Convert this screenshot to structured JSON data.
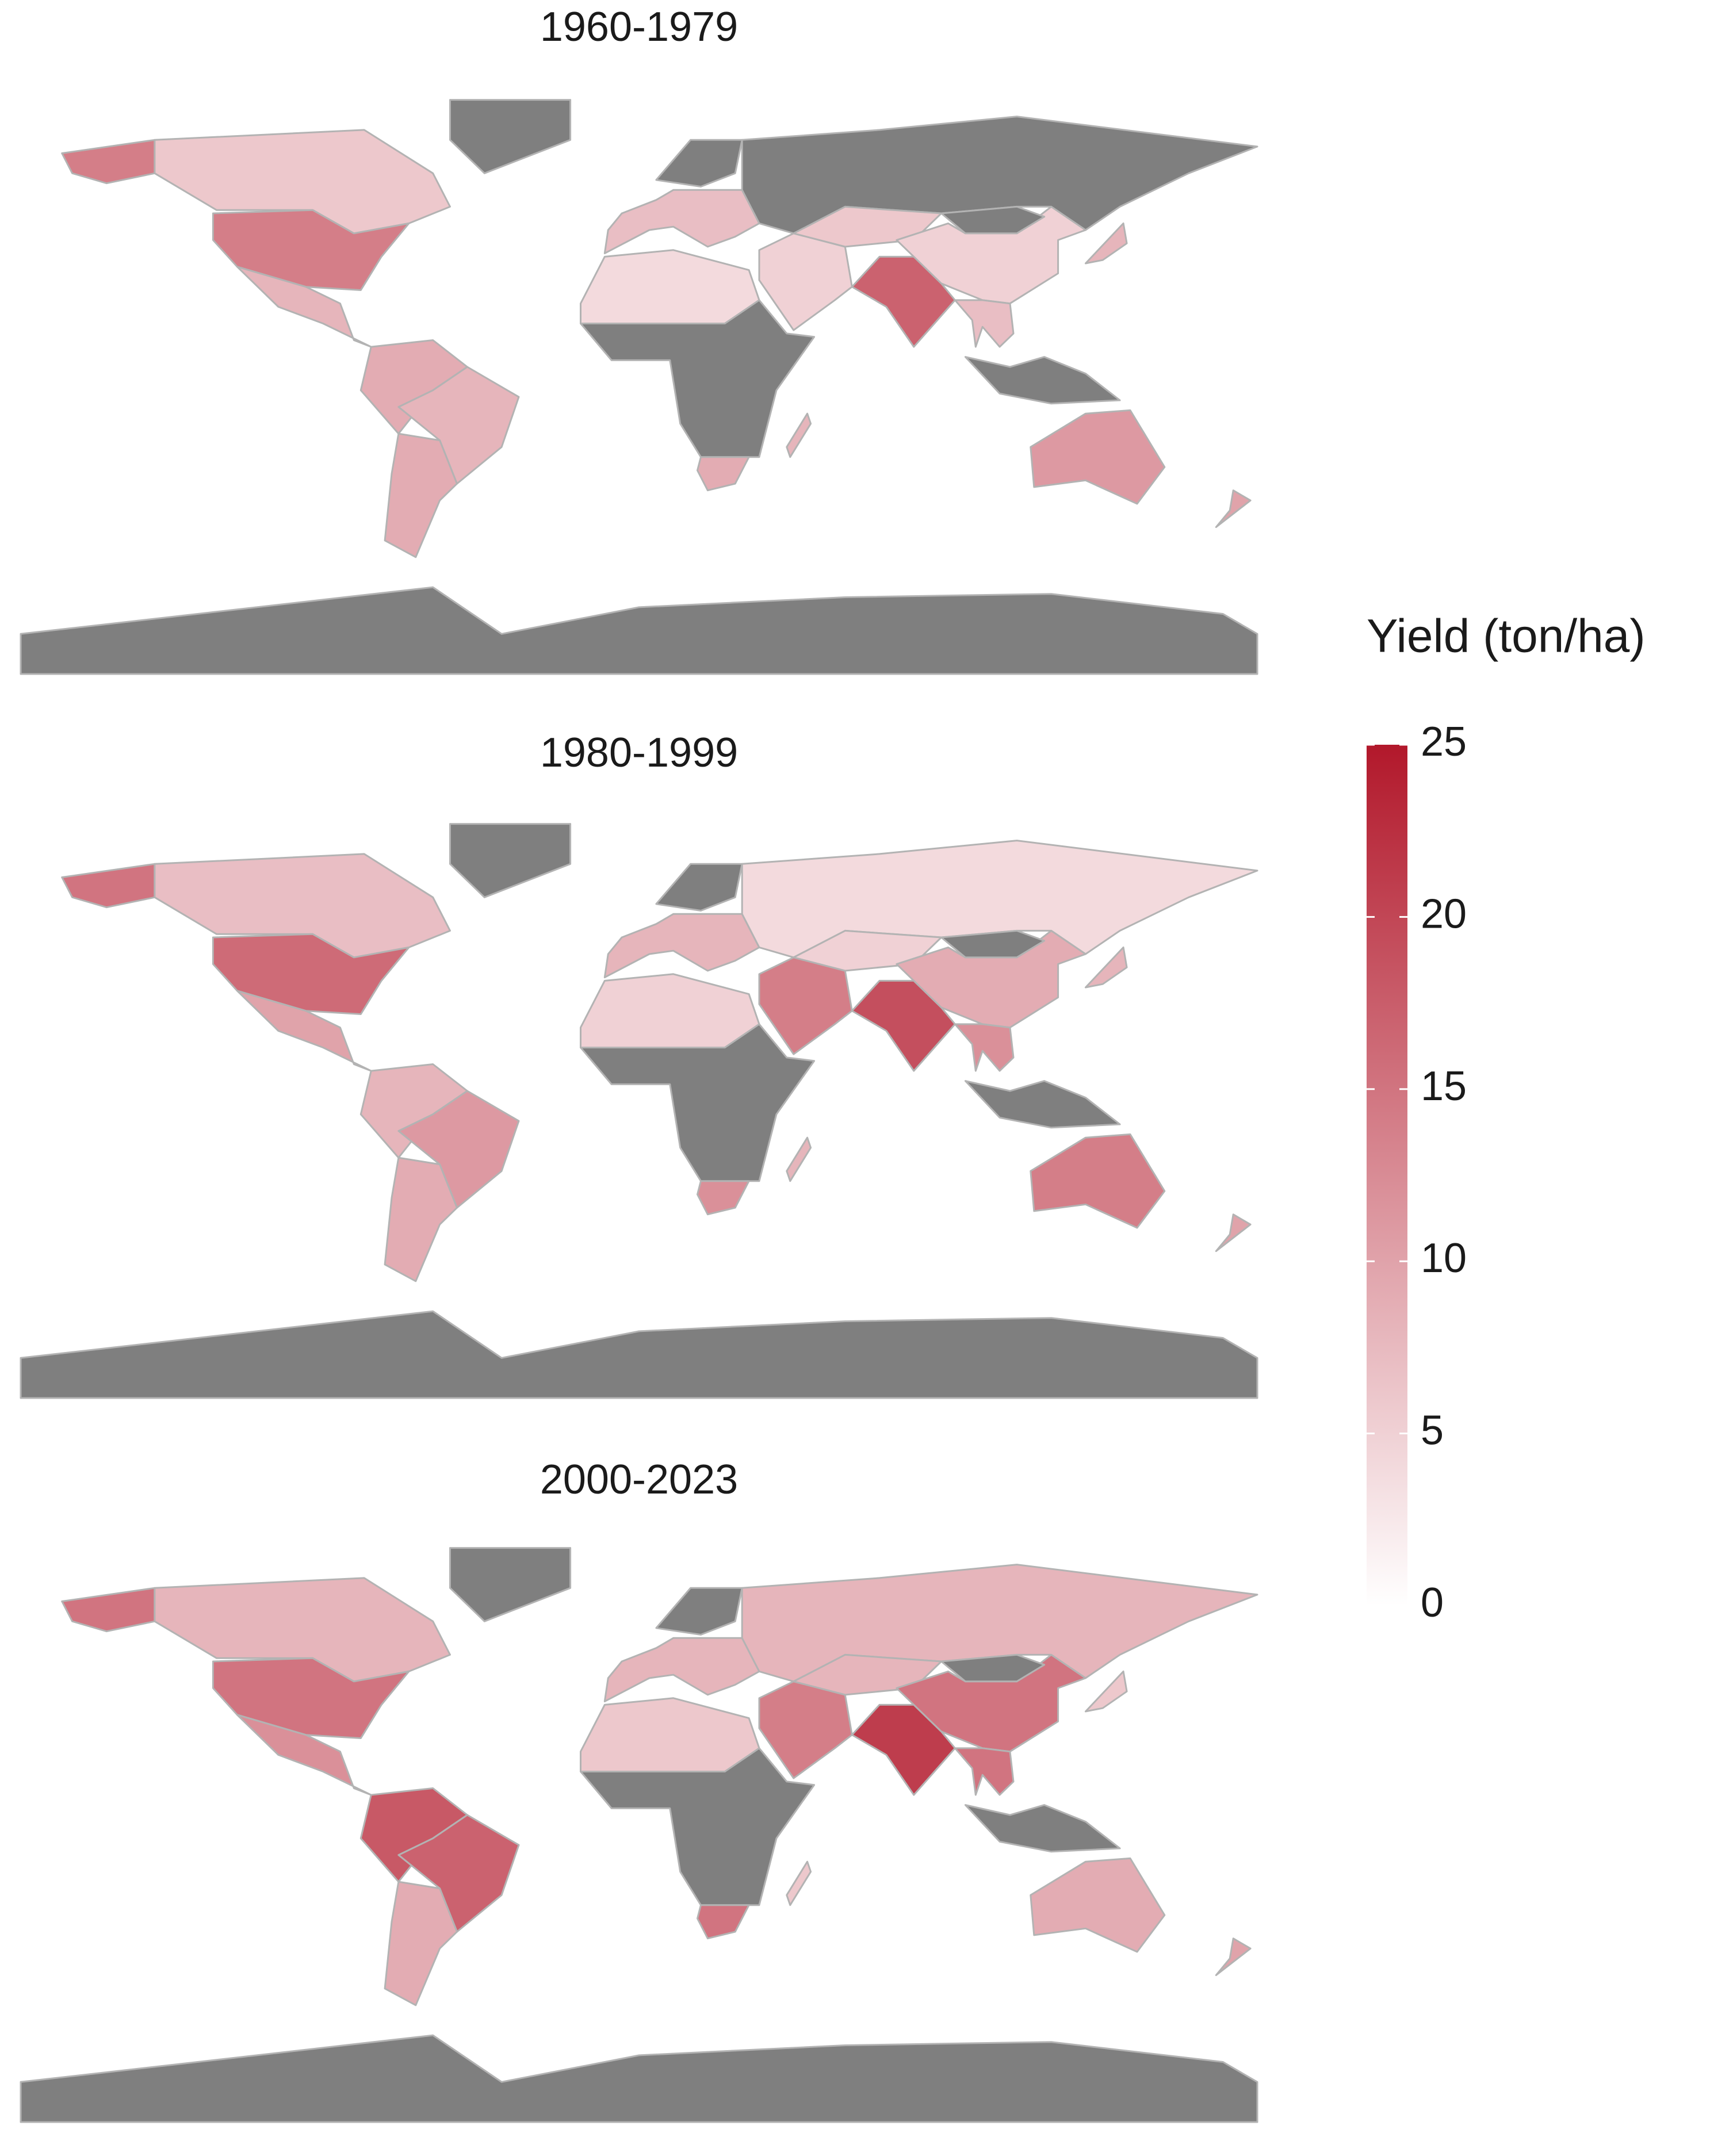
{
  "panels": [
    {
      "title": "1960-1979",
      "values": [
        14,
        6,
        null,
        14,
        8,
        9,
        8,
        9,
        7,
        null,
        null,
        4,
        null,
        9,
        5,
        6,
        17,
        5,
        null,
        7,
        null,
        8,
        11,
        10,
        null,
        8
      ]
    },
    {
      "title": "1980-1999",
      "values": [
        15,
        7,
        null,
        16,
        10,
        8,
        11,
        9,
        8,
        null,
        4,
        5,
        null,
        12,
        14,
        5,
        19,
        9,
        null,
        12,
        null,
        8,
        14,
        10,
        null,
        8
      ]
    },
    {
      "title": "2000-2023",
      "values": [
        15,
        8,
        null,
        15,
        12,
        18,
        17,
        9,
        8,
        null,
        8,
        6,
        null,
        15,
        14,
        8,
        21,
        15,
        null,
        15,
        null,
        6,
        9,
        10,
        null,
        6
      ]
    }
  ],
  "legend": {
    "title": "Yield (ton/ha)",
    "limits": [
      0,
      25
    ],
    "ticks": [
      0,
      5,
      10,
      15,
      20,
      25
    ],
    "colors": [
      "#ffffff",
      "#b2182b"
    ],
    "na_color": "#7f7f7f",
    "border_color": "#b3b3b3"
  }
}
